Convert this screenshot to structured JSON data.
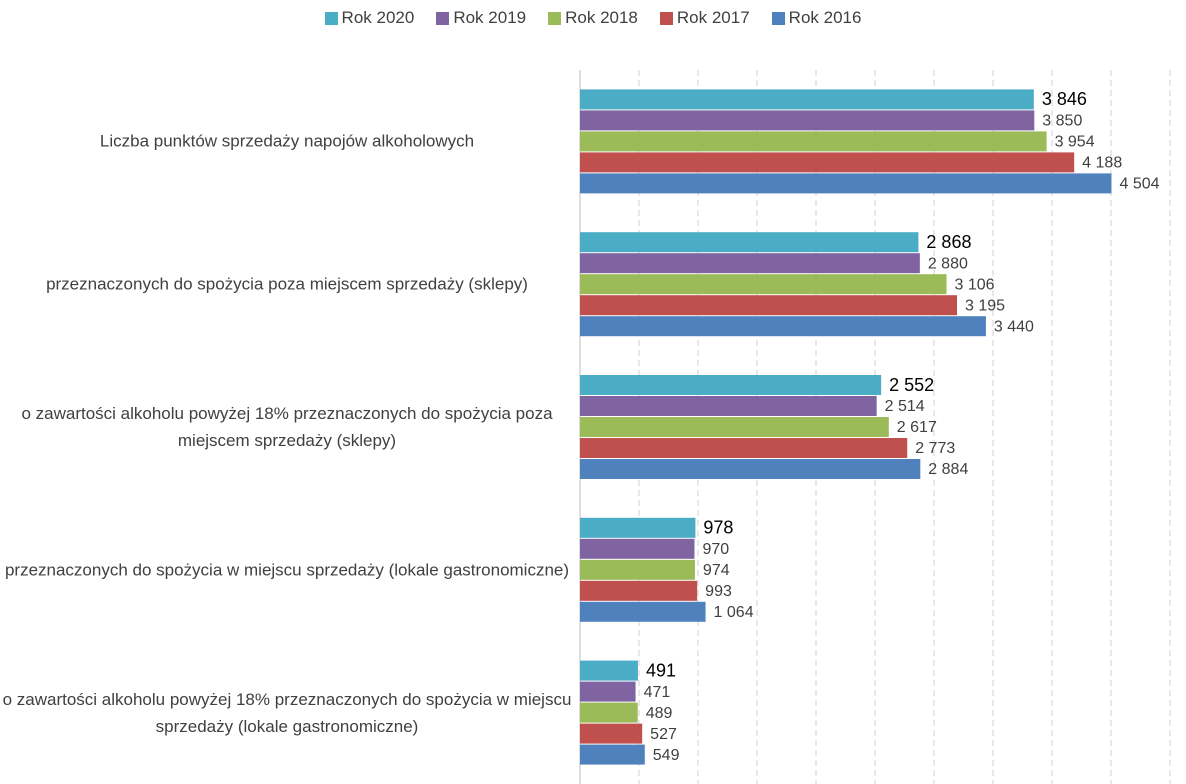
{
  "chart_data": {
    "type": "barh",
    "categories": [
      "Liczba punktów sprzedaży napojów alkoholowych",
      "przeznaczonych do spożycia poza miejscem sprzedaży (sklepy)",
      "o zawartości alkoholu powyżej 18% przeznaczonych do spożycia poza miejscem sprzedaży (sklepy)",
      "przeznaczonych do spożycia w miejscu sprzedaży (lokale gastronomiczne)",
      "o zawartości alkoholu powyżej 18% przeznaczonych do spożycia w miejscu sprzedaży (lokale gastronomiczne)"
    ],
    "series": [
      {
        "name": "Rok 2020",
        "color": "#4bacc6",
        "values": [
          3846,
          2868,
          2552,
          978,
          491
        ],
        "value_labels": [
          "3 846",
          "2 868",
          "2 552",
          "978",
          "491"
        ]
      },
      {
        "name": "Rok 2019",
        "color": "#8064a2",
        "values": [
          3850,
          2880,
          2514,
          970,
          471
        ],
        "value_labels": [
          "3 850",
          "2 880",
          "2 514",
          "970",
          "471"
        ]
      },
      {
        "name": "Rok 2018",
        "color": "#9bbb59",
        "values": [
          3954,
          3106,
          2617,
          974,
          489
        ],
        "value_labels": [
          "3 954",
          "3 106",
          "2 617",
          "974",
          "489"
        ]
      },
      {
        "name": "Rok 2017",
        "color": "#c0504d",
        "values": [
          4188,
          3195,
          2773,
          993,
          527
        ],
        "value_labels": [
          "4 188",
          "3 195",
          "2 773",
          "993",
          "527"
        ]
      },
      {
        "name": "Rok 2016",
        "color": "#4f81bd",
        "values": [
          4504,
          3440,
          2884,
          1064,
          549
        ],
        "value_labels": [
          "4 504",
          "3 440",
          "2 884",
          "1 064",
          "549"
        ]
      }
    ],
    "xlim": [
      0,
      5000
    ],
    "xticks": [
      0,
      500,
      1000,
      1500,
      2000,
      2500,
      3000,
      3500,
      4000,
      4500,
      5000
    ],
    "grid": true,
    "legend": "top"
  }
}
